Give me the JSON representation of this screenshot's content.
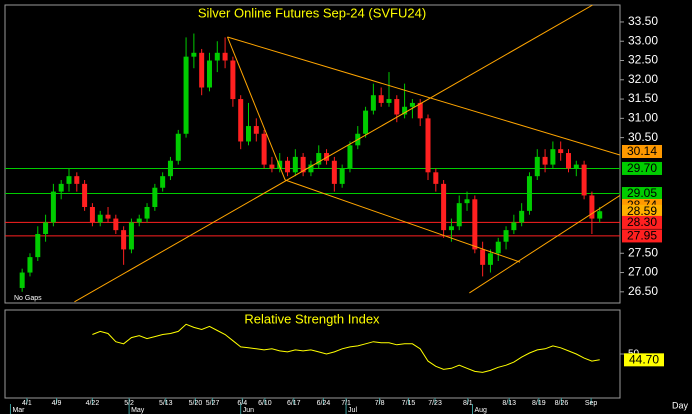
{
  "chart_data": [
    {
      "type": "candlestick",
      "title": "Silver Online Futures Sep-24 (SVFU24)",
      "annotation": "No Gaps",
      "up_color": "#00cc00",
      "down_color": "#ff2020",
      "trend_color": "#ffa500",
      "xlim": [
        -2.2,
        76.6
      ],
      "ylim": [
        26.21,
        33.94
      ],
      "yticks": [
        {
          "value": 26.5,
          "label": "26.50"
        },
        {
          "value": 27,
          "label": "27.00"
        },
        {
          "value": 27.5,
          "label": "27.50"
        },
        {
          "value": 30.5,
          "label": "30.50"
        },
        {
          "value": 31,
          "label": "31.00"
        },
        {
          "value": 31.5,
          "label": "31.50"
        },
        {
          "value": 32,
          "label": "32.00"
        },
        {
          "value": 32.5,
          "label": "32.50"
        },
        {
          "value": 33,
          "label": "33.00"
        },
        {
          "value": 33.5,
          "label": "33.50"
        }
      ],
      "xticks": [
        {
          "value": 0.6,
          "label": "4/1"
        },
        {
          "value": 4.4,
          "label": "4/9"
        },
        {
          "value": 9,
          "label": "4/22"
        },
        {
          "value": 13.7,
          "label": "5/2"
        },
        {
          "value": 18.4,
          "label": "5/13"
        },
        {
          "value": 22.2,
          "label": "5/20"
        },
        {
          "value": 24.4,
          "label": "5/27"
        },
        {
          "value": 28.2,
          "label": "6/4"
        },
        {
          "value": 31.1,
          "label": "6/10"
        },
        {
          "value": 34.8,
          "label": "6/17"
        },
        {
          "value": 38.6,
          "label": "6/24"
        },
        {
          "value": 41.5,
          "label": "7/1"
        },
        {
          "value": 45.8,
          "label": "7/8"
        },
        {
          "value": 49.5,
          "label": "7/15"
        },
        {
          "value": 52.9,
          "label": "7/23"
        },
        {
          "value": 57.1,
          "label": "8/1"
        },
        {
          "value": 62.4,
          "label": "8/13"
        },
        {
          "value": 66.2,
          "label": "8/19"
        },
        {
          "value": 69.1,
          "label": "8/26"
        },
        {
          "value": 72.9,
          "label": "Sep"
        }
      ],
      "month_ticks": [
        {
          "value": -1.5,
          "label": "Mar"
        },
        {
          "value": 13.7,
          "label": "May"
        },
        {
          "value": 28,
          "label": "Jun"
        },
        {
          "value": 41.5,
          "label": "Jul"
        },
        {
          "value": 57.7,
          "label": "Aug"
        }
      ],
      "ohlc": [
        [
          26.6,
          27.1,
          26.5,
          27.0
        ],
        [
          27.0,
          27.5,
          26.9,
          27.4
        ],
        [
          27.4,
          28.2,
          27.3,
          28.0
        ],
        [
          28.0,
          28.5,
          27.8,
          28.3
        ],
        [
          28.3,
          29.3,
          28.2,
          29.1
        ],
        [
          29.1,
          29.4,
          28.9,
          29.3
        ],
        [
          29.3,
          29.7,
          29.1,
          29.5
        ],
        [
          29.5,
          29.6,
          29.1,
          29.3
        ],
        [
          29.3,
          29.4,
          28.6,
          28.7
        ],
        [
          28.7,
          28.8,
          28.2,
          28.3
        ],
        [
          28.3,
          28.6,
          28.2,
          28.5
        ],
        [
          28.5,
          28.7,
          28.3,
          28.4
        ],
        [
          28.4,
          28.5,
          28.0,
          28.1
        ],
        [
          28.1,
          28.2,
          27.2,
          27.6
        ],
        [
          27.6,
          28.4,
          27.5,
          28.3
        ],
        [
          28.3,
          28.5,
          28.2,
          28.4
        ],
        [
          28.4,
          28.8,
          28.3,
          28.7
        ],
        [
          28.7,
          29.3,
          28.6,
          29.2
        ],
        [
          29.2,
          29.6,
          29.1,
          29.5
        ],
        [
          29.5,
          30.0,
          29.4,
          29.9
        ],
        [
          29.9,
          30.7,
          29.8,
          30.6
        ],
        [
          30.6,
          33.1,
          30.5,
          32.6
        ],
        [
          32.6,
          33.2,
          32.3,
          32.7
        ],
        [
          32.7,
          32.8,
          31.6,
          31.8
        ],
        [
          31.8,
          32.7,
          31.7,
          32.5
        ],
        [
          32.5,
          33.0,
          32.2,
          32.7
        ],
        [
          32.7,
          33.1,
          32.3,
          32.5
        ],
        [
          32.5,
          32.6,
          31.3,
          31.5
        ],
        [
          31.5,
          31.6,
          30.2,
          30.4
        ],
        [
          30.4,
          31.4,
          30.3,
          30.8
        ],
        [
          30.8,
          31.0,
          30.4,
          30.6
        ],
        [
          30.6,
          30.7,
          29.7,
          29.8
        ],
        [
          29.8,
          30.0,
          29.6,
          29.7
        ],
        [
          29.7,
          30.1,
          29.6,
          29.9
        ],
        [
          29.9,
          30.0,
          29.5,
          29.6
        ],
        [
          29.6,
          30.2,
          29.5,
          30.0
        ],
        [
          30.0,
          30.1,
          29.5,
          29.6
        ],
        [
          29.6,
          29.9,
          29.5,
          29.8
        ],
        [
          29.8,
          30.3,
          29.7,
          30.1
        ],
        [
          30.1,
          30.2,
          29.8,
          29.9
        ],
        [
          29.9,
          30.0,
          29.1,
          29.3
        ],
        [
          29.3,
          29.8,
          29.2,
          29.7
        ],
        [
          29.7,
          30.4,
          29.6,
          30.3
        ],
        [
          30.3,
          30.8,
          30.2,
          30.6
        ],
        [
          30.6,
          31.3,
          30.5,
          31.2
        ],
        [
          31.2,
          31.9,
          31.1,
          31.6
        ],
        [
          31.6,
          31.8,
          31.3,
          31.4
        ],
        [
          31.4,
          32.2,
          31.3,
          31.5
        ],
        [
          31.5,
          31.6,
          30.9,
          31.1
        ],
        [
          31.1,
          31.9,
          31.0,
          31.3
        ],
        [
          31.3,
          31.5,
          31.0,
          31.4
        ],
        [
          31.4,
          31.5,
          30.8,
          31.0
        ],
        [
          31.0,
          31.1,
          29.4,
          29.6
        ],
        [
          29.6,
          29.7,
          29.1,
          29.3
        ],
        [
          29.3,
          29.4,
          27.9,
          28.1
        ],
        [
          28.1,
          28.4,
          27.8,
          28.2
        ],
        [
          28.2,
          29.0,
          28.1,
          28.8
        ],
        [
          28.8,
          29.1,
          28.6,
          28.9
        ],
        [
          28.9,
          29.0,
          27.5,
          27.6
        ],
        [
          27.6,
          27.8,
          26.9,
          27.2
        ],
        [
          27.2,
          27.6,
          27.0,
          27.5
        ],
        [
          27.5,
          27.9,
          27.3,
          27.8
        ],
        [
          27.8,
          28.2,
          27.6,
          28.1
        ],
        [
          28.1,
          28.5,
          28.0,
          28.3
        ],
        [
          28.3,
          28.8,
          28.2,
          28.6
        ],
        [
          28.6,
          29.6,
          28.5,
          29.5
        ],
        [
          29.5,
          30.2,
          29.4,
          30.0
        ],
        [
          30.0,
          30.2,
          29.6,
          29.8
        ],
        [
          29.8,
          30.4,
          29.7,
          30.2
        ],
        [
          30.2,
          30.4,
          29.9,
          30.1
        ],
        [
          30.1,
          30.2,
          29.6,
          29.7
        ],
        [
          29.7,
          29.9,
          29.5,
          29.8
        ],
        [
          29.8,
          29.9,
          28.9,
          29.0
        ],
        [
          29.0,
          29.1,
          28.0,
          28.4
        ],
        [
          28.4,
          28.7,
          28.3,
          28.59
        ]
      ],
      "trendlines": [
        {
          "x": [
            6.7,
            73.1
          ],
          "y": [
            26.24,
            33.94
          ]
        },
        {
          "x": [
            26.3,
            76.6
          ],
          "y": [
            33.11,
            30.05
          ]
        },
        {
          "x": [
            26.3,
            33.7
          ],
          "y": [
            33.11,
            29.4
          ]
        },
        {
          "x": [
            33.7,
            63.8
          ],
          "y": [
            29.4,
            27.27
          ]
        },
        {
          "x": [
            57.3,
            76.6
          ],
          "y": [
            26.47,
            29.0
          ]
        }
      ],
      "price_labels": [
        {
          "value": 30.14,
          "label": "30.14",
          "color": "#ff9900",
          "line": false
        },
        {
          "value": 29.7,
          "label": "29.70",
          "color": "#00cc00",
          "line": true
        },
        {
          "value": 29.05,
          "label": "29.05",
          "color": "#00cc00",
          "line": true
        },
        {
          "value": 28.74,
          "label": "28.74",
          "color": "#ff9900",
          "line": false
        },
        {
          "value": 28.59,
          "label": "28.59",
          "color": "#ffb000",
          "line": false
        },
        {
          "value": 28.3,
          "label": "28.30",
          "color": "#ff2020",
          "line": true
        },
        {
          "value": 27.95,
          "label": "27.95",
          "color": "#ff2020",
          "line": true
        }
      ]
    },
    {
      "type": "line",
      "title": "Relative Strength Index",
      "color": "#ffff00",
      "period": "Day",
      "ylim": [
        10,
        90
      ],
      "yticks": [
        50
      ],
      "values": [
        null,
        null,
        null,
        null,
        null,
        null,
        null,
        null,
        null,
        67.7,
        70.5,
        68.6,
        61.2,
        59.3,
        64.9,
        66.7,
        64,
        65.8,
        67.7,
        68.6,
        70.5,
        77,
        74.2,
        72.3,
        75.1,
        71.4,
        67.7,
        62.1,
        56.5,
        55.6,
        54.7,
        53.7,
        54.7,
        52.8,
        51.9,
        53.7,
        52.8,
        53.7,
        51.9,
        50,
        51.9,
        54.7,
        56.5,
        57.4,
        59.3,
        61.2,
        60.2,
        60.2,
        58.4,
        59.3,
        59.3,
        54.7,
        43.5,
        38.8,
        36,
        37,
        39.8,
        37,
        34.2,
        33.3,
        35.1,
        37.9,
        39.8,
        42.6,
        47.2,
        50.9,
        53.7,
        54.7,
        57.4,
        55.6,
        52.8,
        50,
        46.3,
        43.5,
        44.7
      ],
      "last_label": {
        "value": 44.7,
        "label": "44.70"
      }
    }
  ]
}
